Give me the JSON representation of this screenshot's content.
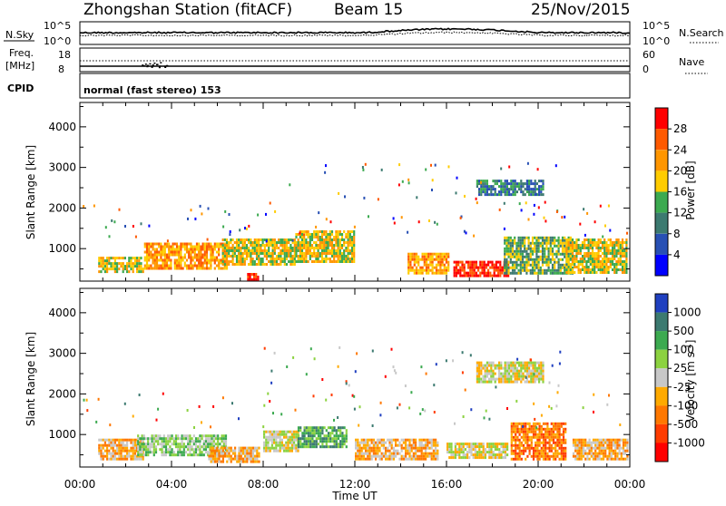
{
  "header": {
    "station": "Zhongshan Station (fitACF)",
    "beam": "Beam 15",
    "date": "25/Nov/2015"
  },
  "noise_panel": {
    "left_label": "N.Sky",
    "right_label": "N.Search",
    "left_ticks": [
      "10^5",
      "10^0"
    ],
    "right_ticks": [
      "10^5",
      "10^0"
    ]
  },
  "freq_panel": {
    "left_label_top": "Freq.",
    "left_label_bottom": "[MHz]",
    "left_ticks": [
      "18",
      "8"
    ],
    "right_label": "Nave",
    "right_ticks": [
      "60",
      "0"
    ]
  },
  "cpid": {
    "label": "CPID",
    "text": "normal (fast stereo) 153"
  },
  "chart_data": [
    {
      "type": "heatmap",
      "name": "power",
      "ylabel": "Slant Range [km]",
      "xlabel": "Time UT",
      "y_ticks": [
        "4000",
        "3000",
        "2000",
        "1000"
      ],
      "y_tick_values": [
        4000,
        3000,
        2000,
        1000
      ],
      "ylim": [
        200,
        4600
      ],
      "x_ticks": [
        "00:00",
        "04:00",
        "08:00",
        "12:00",
        "16:00",
        "20:00",
        "00:00"
      ],
      "xlim_hours": [
        0,
        24
      ],
      "colorbar_label": "Power [dB]",
      "colorbar_ticks": [
        "28",
        "24",
        "20",
        "16",
        "12",
        "8",
        "4"
      ],
      "colorbar_colors": [
        "#ff0000",
        "#ff5a00",
        "#ff9600",
        "#ffcc00",
        "#3caa50",
        "#3c7a70",
        "#2850b4",
        "#0000ff"
      ],
      "patches": [
        {
          "t": [
            0.8,
            2.8
          ],
          "r": [
            450,
            800
          ],
          "level": 4
        },
        {
          "t": [
            2.8,
            6.4
          ],
          "r": [
            500,
            1150
          ],
          "level": 5
        },
        {
          "t": [
            6.2,
            9.4
          ],
          "r": [
            600,
            1250
          ],
          "level": 4
        },
        {
          "t": [
            9.4,
            12.0
          ],
          "r": [
            700,
            1450
          ],
          "level": 4
        },
        {
          "t": [
            14.3,
            16.1
          ],
          "r": [
            400,
            900
          ],
          "level": 5
        },
        {
          "t": [
            16.3,
            18.7
          ],
          "r": [
            350,
            700
          ],
          "level": 7
        },
        {
          "t": [
            18.5,
            21.5
          ],
          "r": [
            400,
            1300
          ],
          "level": 3
        },
        {
          "t": [
            21.2,
            23.9
          ],
          "r": [
            400,
            1250
          ],
          "level": 4
        },
        {
          "t": [
            17.3,
            20.2
          ],
          "r": [
            2300,
            2700
          ],
          "level": 2
        },
        {
          "t": [
            7.3,
            7.8
          ],
          "r": [
            200,
            400
          ],
          "level": 7
        }
      ]
    },
    {
      "type": "heatmap",
      "name": "velocity",
      "ylabel": "Slant Range [km]",
      "xlabel": "Time UT",
      "y_ticks": [
        "4000",
        "3000",
        "2000",
        "1000"
      ],
      "y_tick_values": [
        4000,
        3000,
        2000,
        1000
      ],
      "ylim": [
        200,
        4600
      ],
      "x_ticks": [
        "00:00",
        "04:00",
        "08:00",
        "12:00",
        "16:00",
        "20:00",
        "00:00"
      ],
      "xlim_hours": [
        0,
        24
      ],
      "colorbar_label": "Velocity [m s^-1]",
      "colorbar_ticks": [
        "1000",
        "500",
        "100",
        "25",
        "-25",
        "-100",
        "-500",
        "-1000"
      ],
      "colorbar_colors": [
        "#2040c0",
        "#3c7a70",
        "#3caa50",
        "#8cd240",
        "#c8c8c8",
        "#ffaa00",
        "#ff7800",
        "#ff3c00",
        "#ff0000"
      ],
      "patches": [
        {
          "t": [
            0.8,
            2.8
          ],
          "r": [
            400,
            900
          ],
          "level": 3
        },
        {
          "t": [
            2.5,
            6.4
          ],
          "r": [
            500,
            1000
          ],
          "level": 5
        },
        {
          "t": [
            5.6,
            7.8
          ],
          "r": [
            350,
            700
          ],
          "level": 3
        },
        {
          "t": [
            8.0,
            9.5
          ],
          "r": [
            600,
            1100
          ],
          "level": 4
        },
        {
          "t": [
            9.5,
            11.6
          ],
          "r": [
            700,
            1200
          ],
          "level": 6
        },
        {
          "t": [
            12.0,
            15.6
          ],
          "r": [
            400,
            900
          ],
          "level": 3
        },
        {
          "t": [
            16.0,
            18.7
          ],
          "r": [
            400,
            800
          ],
          "level": 4
        },
        {
          "t": [
            18.8,
            21.2
          ],
          "r": [
            400,
            1300
          ],
          "level": 2
        },
        {
          "t": [
            21.5,
            23.9
          ],
          "r": [
            400,
            900
          ],
          "level": 3
        },
        {
          "t": [
            17.3,
            20.2
          ],
          "r": [
            2300,
            2800
          ],
          "level": 4
        }
      ]
    }
  ]
}
